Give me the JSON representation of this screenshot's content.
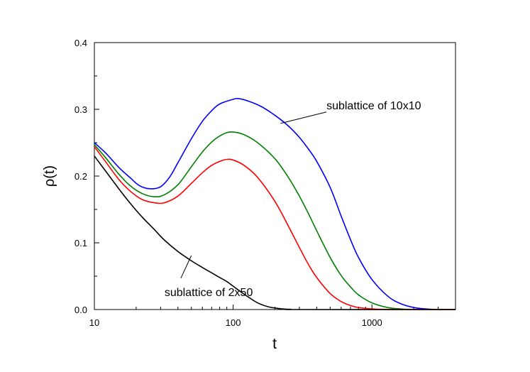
{
  "chart_data": {
    "type": "line",
    "title": "",
    "xlabel": "t",
    "ylabel": "ρ(t)",
    "x_scale": "log",
    "xlim": [
      10,
      4000
    ],
    "ylim": [
      0,
      0.4
    ],
    "x_ticks": [
      {
        "value": 10,
        "label": "10"
      },
      {
        "value": 100,
        "label": "100"
      },
      {
        "value": 1000,
        "label": "1000"
      }
    ],
    "y_ticks": [
      {
        "value": 0.0,
        "label": "0.0"
      },
      {
        "value": 0.1,
        "label": "0.1"
      },
      {
        "value": 0.2,
        "label": "0.2"
      },
      {
        "value": 0.3,
        "label": "0.3"
      },
      {
        "value": 0.4,
        "label": "0.4"
      }
    ],
    "grid": false,
    "legend": "none",
    "series": [
      {
        "color": "#0000ff",
        "points": [
          [
            10,
            0.25
          ],
          [
            12,
            0.235
          ],
          [
            15,
            0.213
          ],
          [
            18,
            0.198
          ],
          [
            21,
            0.186
          ],
          [
            25,
            0.181
          ],
          [
            30,
            0.184
          ],
          [
            35,
            0.199
          ],
          [
            40,
            0.22
          ],
          [
            50,
            0.256
          ],
          [
            60,
            0.282
          ],
          [
            70,
            0.298
          ],
          [
            80,
            0.308
          ],
          [
            100,
            0.315
          ],
          [
            110,
            0.316
          ],
          [
            130,
            0.312
          ],
          [
            160,
            0.304
          ],
          [
            200,
            0.291
          ],
          [
            250,
            0.275
          ],
          [
            300,
            0.258
          ],
          [
            350,
            0.24
          ],
          [
            400,
            0.222
          ],
          [
            500,
            0.183
          ],
          [
            600,
            0.14
          ],
          [
            700,
            0.105
          ],
          [
            800,
            0.078
          ],
          [
            1000,
            0.045
          ],
          [
            1300,
            0.02
          ],
          [
            1600,
            0.009
          ],
          [
            2000,
            0.003
          ],
          [
            2500,
            0.0008
          ],
          [
            3000,
            0.0002
          ],
          [
            4000,
            0.0
          ]
        ]
      },
      {
        "color": "#008000",
        "points": [
          [
            10,
            0.247
          ],
          [
            12,
            0.228
          ],
          [
            15,
            0.203
          ],
          [
            18,
            0.186
          ],
          [
            22,
            0.174
          ],
          [
            27,
            0.169
          ],
          [
            32,
            0.172
          ],
          [
            40,
            0.187
          ],
          [
            50,
            0.214
          ],
          [
            60,
            0.236
          ],
          [
            70,
            0.251
          ],
          [
            80,
            0.26
          ],
          [
            90,
            0.265
          ],
          [
            100,
            0.266
          ],
          [
            120,
            0.262
          ],
          [
            150,
            0.25
          ],
          [
            200,
            0.226
          ],
          [
            250,
            0.198
          ],
          [
            300,
            0.17
          ],
          [
            350,
            0.143
          ],
          [
            400,
            0.118
          ],
          [
            500,
            0.078
          ],
          [
            600,
            0.051
          ],
          [
            700,
            0.034
          ],
          [
            800,
            0.022
          ],
          [
            1000,
            0.01
          ],
          [
            1300,
            0.003
          ],
          [
            1600,
            0.001
          ],
          [
            2000,
            0.0002
          ],
          [
            4000,
            0.0
          ]
        ]
      },
      {
        "color": "#ff0000",
        "points": [
          [
            10,
            0.244
          ],
          [
            12,
            0.222
          ],
          [
            15,
            0.195
          ],
          [
            18,
            0.178
          ],
          [
            22,
            0.165
          ],
          [
            27,
            0.16
          ],
          [
            32,
            0.16
          ],
          [
            40,
            0.17
          ],
          [
            50,
            0.189
          ],
          [
            60,
            0.205
          ],
          [
            70,
            0.216
          ],
          [
            80,
            0.222
          ],
          [
            90,
            0.225
          ],
          [
            100,
            0.224
          ],
          [
            120,
            0.216
          ],
          [
            150,
            0.198
          ],
          [
            200,
            0.162
          ],
          [
            250,
            0.125
          ],
          [
            300,
            0.093
          ],
          [
            350,
            0.067
          ],
          [
            400,
            0.048
          ],
          [
            500,
            0.024
          ],
          [
            600,
            0.012
          ],
          [
            700,
            0.006
          ],
          [
            800,
            0.003
          ],
          [
            1000,
            0.001
          ],
          [
            1300,
            0.0002
          ],
          [
            4000,
            0.0
          ]
        ]
      },
      {
        "color": "#000000",
        "points": [
          [
            10,
            0.23
          ],
          [
            12,
            0.208
          ],
          [
            15,
            0.181
          ],
          [
            18,
            0.16
          ],
          [
            22,
            0.139
          ],
          [
            27,
            0.12
          ],
          [
            32,
            0.104
          ],
          [
            40,
            0.087
          ],
          [
            50,
            0.073
          ],
          [
            60,
            0.063
          ],
          [
            70,
            0.055
          ],
          [
            80,
            0.048
          ],
          [
            90,
            0.042
          ],
          [
            100,
            0.035
          ],
          [
            120,
            0.023
          ],
          [
            150,
            0.01
          ],
          [
            180,
            0.004
          ],
          [
            220,
            0.0012
          ],
          [
            260,
            0.0003
          ],
          [
            300,
            0.0
          ],
          [
            4000,
            0.0
          ]
        ]
      }
    ],
    "annotations": [
      {
        "text": "sublattice of 10x10",
        "anchor": [
          470,
          0.3
        ],
        "pointer_from": [
          470,
          0.296
        ],
        "pointer_to": [
          220,
          0.279
        ]
      },
      {
        "text": "sublattice of 2x50",
        "anchor": [
          32,
          0.02
        ],
        "pointer_from": [
          42,
          0.047
        ],
        "pointer_to": [
          50,
          0.081
        ]
      }
    ]
  }
}
